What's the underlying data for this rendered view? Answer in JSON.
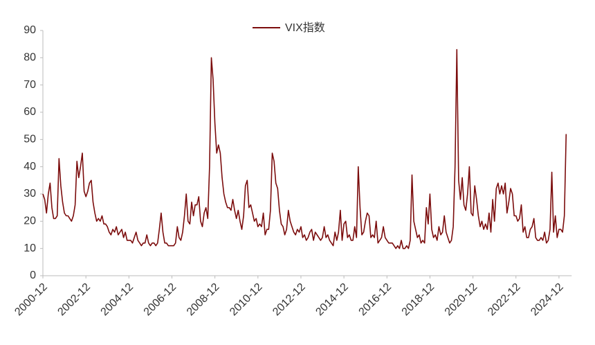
{
  "chart_data": {
    "type": "line",
    "x": [
      "2000-12",
      "2001-01",
      "2001-02",
      "2001-03",
      "2001-04",
      "2001-05",
      "2001-06",
      "2001-07",
      "2001-08",
      "2001-09",
      "2001-10",
      "2001-11",
      "2001-12",
      "2002-01",
      "2002-02",
      "2002-03",
      "2002-04",
      "2002-05",
      "2002-06",
      "2002-07",
      "2002-08",
      "2002-09",
      "2002-10",
      "2002-11",
      "2002-12",
      "2003-01",
      "2003-02",
      "2003-03",
      "2003-04",
      "2003-05",
      "2003-06",
      "2003-07",
      "2003-08",
      "2003-09",
      "2003-10",
      "2003-11",
      "2003-12",
      "2004-01",
      "2004-02",
      "2004-03",
      "2004-04",
      "2004-05",
      "2004-06",
      "2004-07",
      "2004-08",
      "2004-09",
      "2004-10",
      "2004-11",
      "2004-12",
      "2005-01",
      "2005-02",
      "2005-03",
      "2005-04",
      "2005-05",
      "2005-06",
      "2005-07",
      "2005-08",
      "2005-09",
      "2005-10",
      "2005-11",
      "2005-12",
      "2006-01",
      "2006-02",
      "2006-03",
      "2006-04",
      "2006-05",
      "2006-06",
      "2006-07",
      "2006-08",
      "2006-09",
      "2006-10",
      "2006-11",
      "2006-12",
      "2007-01",
      "2007-02",
      "2007-03",
      "2007-04",
      "2007-05",
      "2007-06",
      "2007-07",
      "2007-08",
      "2007-09",
      "2007-10",
      "2007-11",
      "2007-12",
      "2008-01",
      "2008-02",
      "2008-03",
      "2008-04",
      "2008-05",
      "2008-06",
      "2008-07",
      "2008-08",
      "2008-09",
      "2008-10",
      "2008-11",
      "2008-12",
      "2009-01",
      "2009-02",
      "2009-03",
      "2009-04",
      "2009-05",
      "2009-06",
      "2009-07",
      "2009-08",
      "2009-09",
      "2009-10",
      "2009-11",
      "2009-12",
      "2010-01",
      "2010-02",
      "2010-03",
      "2010-04",
      "2010-05",
      "2010-06",
      "2010-07",
      "2010-08",
      "2010-09",
      "2010-10",
      "2010-11",
      "2010-12",
      "2011-01",
      "2011-02",
      "2011-03",
      "2011-04",
      "2011-05",
      "2011-06",
      "2011-07",
      "2011-08",
      "2011-09",
      "2011-10",
      "2011-11",
      "2011-12",
      "2012-01",
      "2012-02",
      "2012-03",
      "2012-04",
      "2012-05",
      "2012-06",
      "2012-07",
      "2012-08",
      "2012-09",
      "2012-10",
      "2012-11",
      "2012-12",
      "2013-01",
      "2013-02",
      "2013-03",
      "2013-04",
      "2013-05",
      "2013-06",
      "2013-07",
      "2013-08",
      "2013-09",
      "2013-10",
      "2013-11",
      "2013-12",
      "2014-01",
      "2014-02",
      "2014-03",
      "2014-04",
      "2014-05",
      "2014-06",
      "2014-07",
      "2014-08",
      "2014-09",
      "2014-10",
      "2014-11",
      "2014-12",
      "2015-01",
      "2015-02",
      "2015-03",
      "2015-04",
      "2015-05",
      "2015-06",
      "2015-07",
      "2015-08",
      "2015-09",
      "2015-10",
      "2015-11",
      "2015-12",
      "2016-01",
      "2016-02",
      "2016-03",
      "2016-04",
      "2016-05",
      "2016-06",
      "2016-07",
      "2016-08",
      "2016-09",
      "2016-10",
      "2016-11",
      "2016-12",
      "2017-01",
      "2017-02",
      "2017-03",
      "2017-04",
      "2017-05",
      "2017-06",
      "2017-07",
      "2017-08",
      "2017-09",
      "2017-10",
      "2017-11",
      "2017-12",
      "2018-01",
      "2018-02",
      "2018-03",
      "2018-04",
      "2018-05",
      "2018-06",
      "2018-07",
      "2018-08",
      "2018-09",
      "2018-10",
      "2018-11",
      "2018-12",
      "2019-01",
      "2019-02",
      "2019-03",
      "2019-04",
      "2019-05",
      "2019-06",
      "2019-07",
      "2019-08",
      "2019-09",
      "2019-10",
      "2019-11",
      "2019-12",
      "2020-01",
      "2020-02",
      "2020-03",
      "2020-04",
      "2020-05",
      "2020-06",
      "2020-07",
      "2020-08",
      "2020-09",
      "2020-10",
      "2020-11",
      "2020-12",
      "2021-01",
      "2021-02",
      "2021-03",
      "2021-04",
      "2021-05",
      "2021-06",
      "2021-07",
      "2021-08",
      "2021-09",
      "2021-10",
      "2021-11",
      "2021-12",
      "2022-01",
      "2022-02",
      "2022-03",
      "2022-04",
      "2022-05",
      "2022-06",
      "2022-07",
      "2022-08",
      "2022-09",
      "2022-10",
      "2022-11",
      "2022-12",
      "2023-01",
      "2023-02",
      "2023-03",
      "2023-04",
      "2023-05",
      "2023-06",
      "2023-07",
      "2023-08",
      "2023-09",
      "2023-10",
      "2023-11",
      "2023-12",
      "2024-01",
      "2024-02",
      "2024-03",
      "2024-04",
      "2024-05",
      "2024-06",
      "2024-07",
      "2024-08",
      "2024-09",
      "2024-10",
      "2024-11",
      "2024-12",
      "2025-01",
      "2025-02",
      "2025-03",
      "2025-04"
    ],
    "series": [
      {
        "name": "VIX指数",
        "color": "#7b0c0c",
        "values": [
          30,
          28,
          23,
          30,
          34,
          25,
          21,
          21,
          22,
          43,
          33,
          27,
          23,
          22,
          22,
          21,
          20,
          22,
          26,
          42,
          36,
          40,
          45,
          31,
          29,
          31,
          34,
          35,
          27,
          23,
          20,
          21,
          20,
          22,
          19,
          19,
          18,
          16,
          15,
          17,
          16,
          18,
          15,
          16,
          17,
          14,
          16,
          13,
          13,
          13,
          12,
          14,
          16,
          13,
          12,
          11,
          12,
          12,
          15,
          12,
          11,
          12,
          12,
          11,
          12,
          17,
          23,
          16,
          12,
          12,
          11,
          11,
          11,
          11,
          12,
          18,
          14,
          13,
          16,
          22,
          30,
          20,
          19,
          27,
          22,
          26,
          26,
          29,
          20,
          18,
          23,
          25,
          21,
          40,
          80,
          72,
          56,
          45,
          48,
          45,
          36,
          30,
          27,
          25,
          25,
          24,
          28,
          24,
          21,
          24,
          20,
          17,
          22,
          33,
          35,
          25,
          26,
          23,
          20,
          21,
          18,
          19,
          18,
          23,
          15,
          17,
          17,
          24,
          45,
          42,
          34,
          32,
          24,
          19,
          18,
          15,
          17,
          24,
          20,
          18,
          16,
          15,
          17,
          16,
          18,
          14,
          15,
          13,
          14,
          16,
          17,
          13,
          16,
          15,
          14,
          13,
          14,
          18,
          14,
          15,
          13,
          12,
          11,
          16,
          13,
          16,
          24,
          13,
          19,
          20,
          14,
          15,
          13,
          13,
          18,
          14,
          40,
          25,
          15,
          16,
          20,
          23,
          22,
          14,
          15,
          14,
          20,
          12,
          13,
          14,
          18,
          14,
          13,
          12,
          12,
          12,
          11,
          10,
          11,
          10,
          13,
          10,
          10,
          11,
          10,
          13,
          37,
          20,
          17,
          14,
          15,
          12,
          13,
          12,
          25,
          19,
          30,
          17,
          14,
          15,
          13,
          18,
          15,
          16,
          22,
          16,
          14,
          12,
          13,
          18,
          40,
          83,
          35,
          28,
          36,
          26,
          24,
          30,
          40,
          23,
          22,
          33,
          28,
          22,
          18,
          20,
          17,
          19,
          17,
          23,
          16,
          28,
          20,
          32,
          34,
          30,
          33,
          30,
          34,
          23,
          27,
          32,
          30,
          22,
          22,
          20,
          21,
          26,
          16,
          18,
          14,
          14,
          17,
          18,
          21,
          14,
          13,
          13,
          14,
          13,
          16,
          12,
          13,
          17,
          38,
          16,
          22,
          14,
          17,
          17,
          16,
          22,
          52
        ]
      }
    ],
    "ylim": [
      0,
      90
    ],
    "yticks": [
      0,
      10,
      20,
      30,
      40,
      50,
      60,
      70,
      80,
      90
    ],
    "grid": false,
    "legend": "top"
  }
}
